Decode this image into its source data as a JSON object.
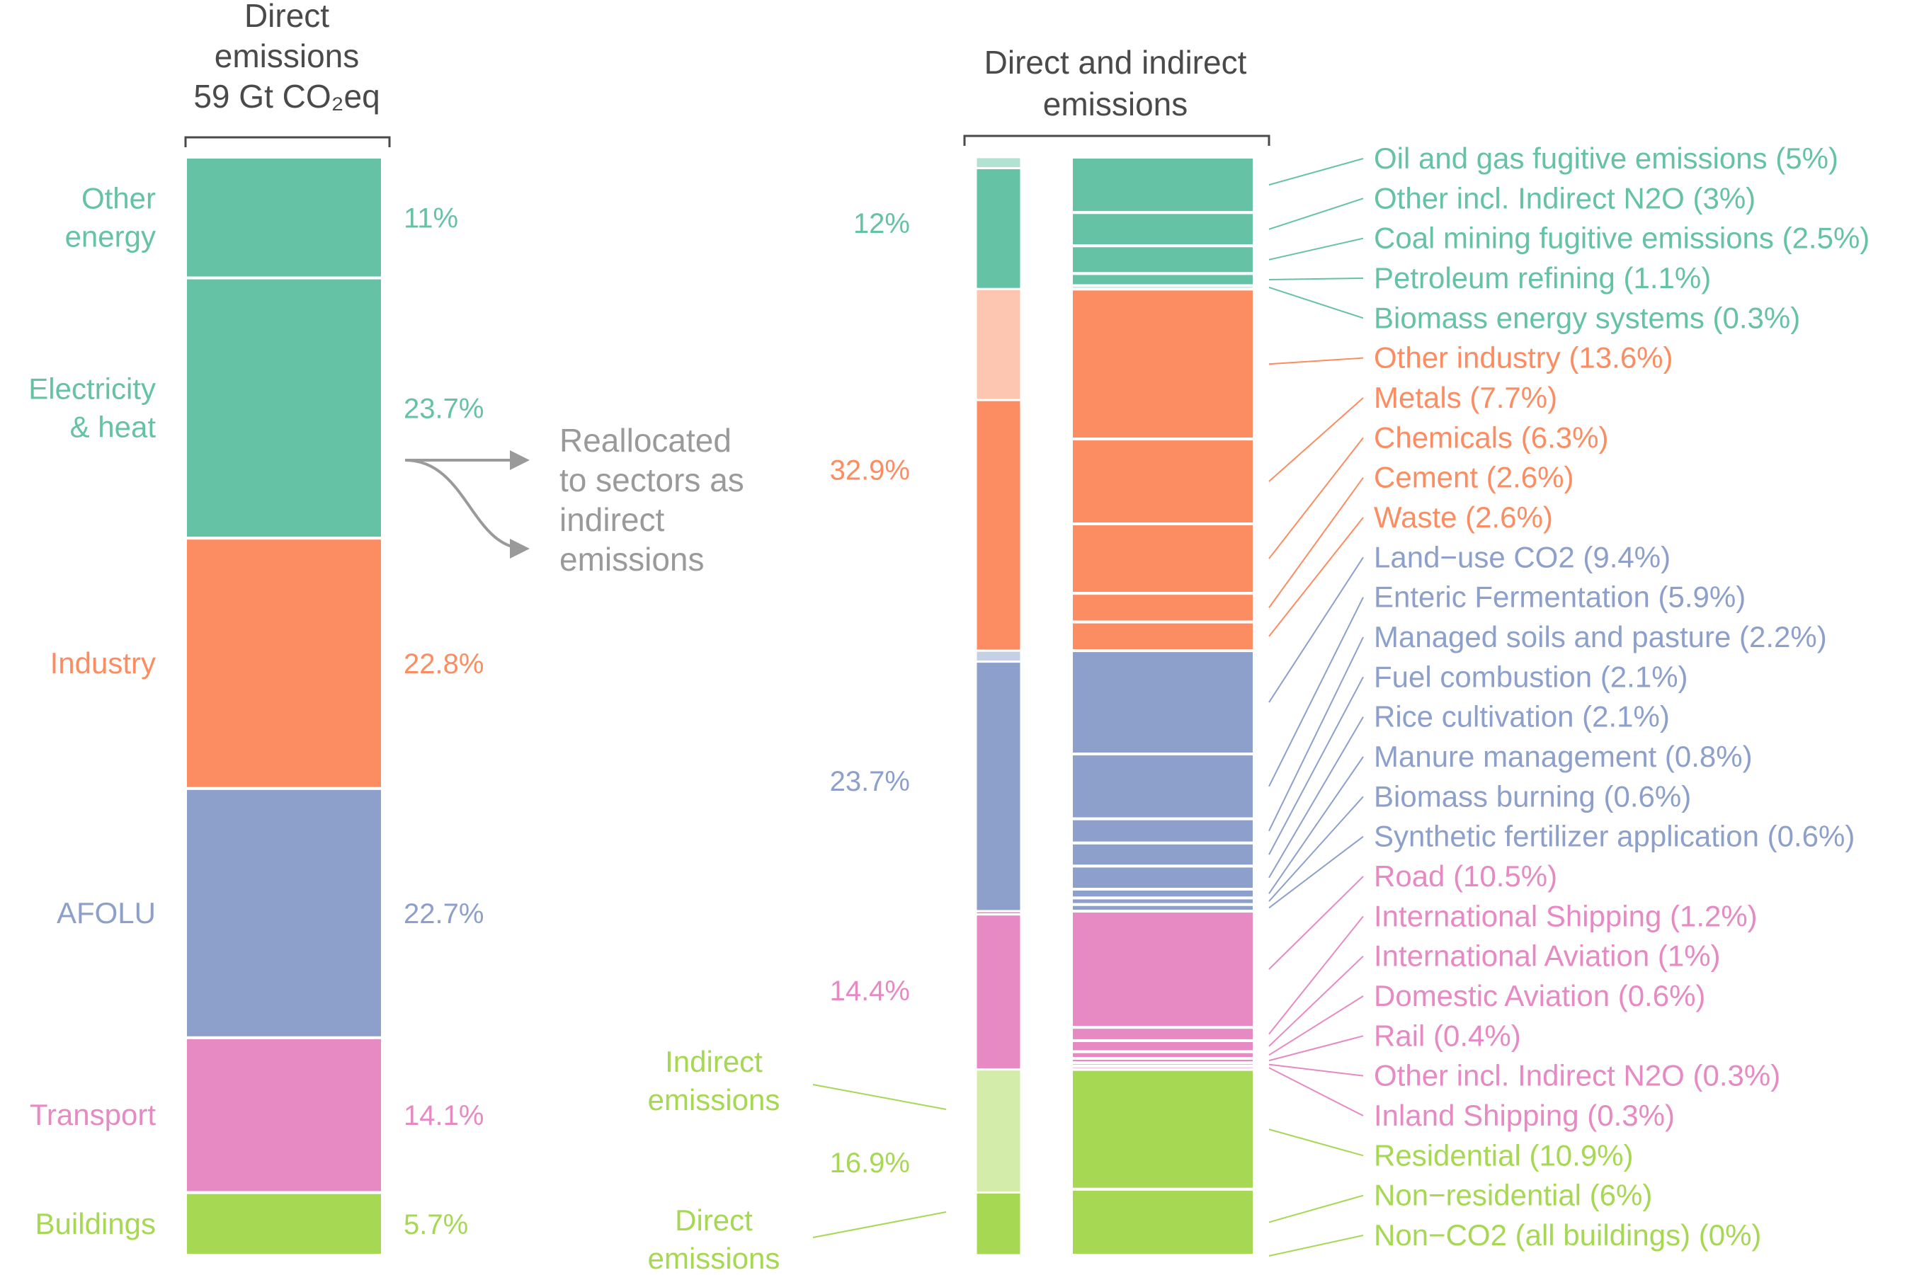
{
  "colors": {
    "energy": "#66c2a5",
    "industry": "#fc8d62",
    "afolu": "#8da0cb",
    "transport": "#e78ac3",
    "buildings": "#a6d854",
    "energy_light": "#b2e2d2",
    "industry_light": "#fdc6b0",
    "afolu_light": "#c6d0e5",
    "buildings_light": "#d3ecaa",
    "text_dark": "#4a4a4a",
    "arrow": "#9a9a9a"
  },
  "headers": {
    "left_line1": "Direct",
    "left_line2": "emissions",
    "left_line3": "59 Gt CO₂eq",
    "right_line1": "Direct and indirect",
    "right_line2": "emissions"
  },
  "annotation": {
    "line1": "Reallocated",
    "line2": "to sectors as",
    "line3": "indirect",
    "line4": "emissions"
  },
  "side_labels": {
    "indirect_line1": "Indirect",
    "indirect_line2": "emissions",
    "direct_line1": "Direct",
    "direct_line2": "emissions"
  },
  "chart_data": [
    {
      "type": "bar",
      "title": "Direct emissions 59 Gt CO₂eq",
      "categories": [
        "Other energy",
        "Electricity & heat",
        "Industry",
        "AFOLU",
        "Transport",
        "Buildings"
      ],
      "category_lines": [
        [
          "Other",
          "energy"
        ],
        [
          "Electricity",
          "& heat"
        ],
        [
          "Industry"
        ],
        [
          "AFOLU"
        ],
        [
          "Transport"
        ],
        [
          "Buildings"
        ]
      ],
      "values": [
        11,
        23.7,
        22.8,
        22.7,
        14.1,
        5.7
      ],
      "value_labels": [
        "11%",
        "23.7%",
        "22.8%",
        "22.7%",
        "14.1%",
        "5.7%"
      ],
      "sector_keys": [
        "energy",
        "energy",
        "industry",
        "afolu",
        "transport",
        "buildings"
      ],
      "unit": "%"
    },
    {
      "type": "bar",
      "title": "Direct and indirect emissions",
      "sector_totals": [
        {
          "sector": "energy",
          "value": 12,
          "label": "12%",
          "indirect": 1
        },
        {
          "sector": "industry",
          "value": 32.9,
          "label": "32.9%",
          "indirect": 10.1
        },
        {
          "sector": "afolu",
          "value": 23.7,
          "label": "23.7%",
          "indirect": 1
        },
        {
          "sector": "transport",
          "value": 14.4,
          "label": "14.4%",
          "indirect": 0.3
        },
        {
          "sector": "buildings",
          "value": 16.9,
          "label": "16.9%",
          "indirect": 11.2
        }
      ],
      "subsectors": [
        {
          "sector": "energy",
          "label": "Oil and gas fugitive emissions (5%)",
          "value": 5
        },
        {
          "sector": "energy",
          "label": "Other incl. Indirect N2O (3%)",
          "value": 3
        },
        {
          "sector": "energy",
          "label": "Coal mining fugitive emissions (2.5%)",
          "value": 2.5
        },
        {
          "sector": "energy",
          "label": "Petroleum refining (1.1%)",
          "value": 1.1
        },
        {
          "sector": "energy",
          "label": "Biomass energy systems (0.3%)",
          "value": 0.3
        },
        {
          "sector": "industry",
          "label": "Other industry (13.6%)",
          "value": 13.6
        },
        {
          "sector": "industry",
          "label": "Metals (7.7%)",
          "value": 7.7
        },
        {
          "sector": "industry",
          "label": "Chemicals (6.3%)",
          "value": 6.3
        },
        {
          "sector": "industry",
          "label": "Cement (2.6%)",
          "value": 2.6
        },
        {
          "sector": "industry",
          "label": "Waste (2.6%)",
          "value": 2.6
        },
        {
          "sector": "afolu",
          "label": "Land−use CO2 (9.4%)",
          "value": 9.4
        },
        {
          "sector": "afolu",
          "label": "Enteric Fermentation (5.9%)",
          "value": 5.9
        },
        {
          "sector": "afolu",
          "label": "Managed soils and pasture (2.2%)",
          "value": 2.2
        },
        {
          "sector": "afolu",
          "label": "Fuel combustion (2.1%)",
          "value": 2.1
        },
        {
          "sector": "afolu",
          "label": "Rice cultivation (2.1%)",
          "value": 2.1
        },
        {
          "sector": "afolu",
          "label": "Manure management (0.8%)",
          "value": 0.8
        },
        {
          "sector": "afolu",
          "label": "Biomass burning (0.6%)",
          "value": 0.6
        },
        {
          "sector": "afolu",
          "label": "Synthetic fertilizer application (0.6%)",
          "value": 0.6
        },
        {
          "sector": "transport",
          "label": "Road  (10.5%)",
          "value": 10.5
        },
        {
          "sector": "transport",
          "label": "International Shipping (1.2%)",
          "value": 1.2
        },
        {
          "sector": "transport",
          "label": "International Aviation (1%)",
          "value": 1
        },
        {
          "sector": "transport",
          "label": "Domestic Aviation (0.6%)",
          "value": 0.6
        },
        {
          "sector": "transport",
          "label": "Rail  (0.4%)",
          "value": 0.4
        },
        {
          "sector": "transport",
          "label": "Other incl. Indirect N2O (0.3%)",
          "value": 0.3
        },
        {
          "sector": "transport",
          "label": "Inland Shipping (0.3%)",
          "value": 0.3
        },
        {
          "sector": "buildings",
          "label": "Residential (10.9%)",
          "value": 10.9
        },
        {
          "sector": "buildings",
          "label": "Non−residential (6%)",
          "value": 6
        },
        {
          "sector": "buildings",
          "label": "Non−CO2 (all buildings) (0%)",
          "value": 0
        }
      ],
      "unit": "%"
    }
  ]
}
